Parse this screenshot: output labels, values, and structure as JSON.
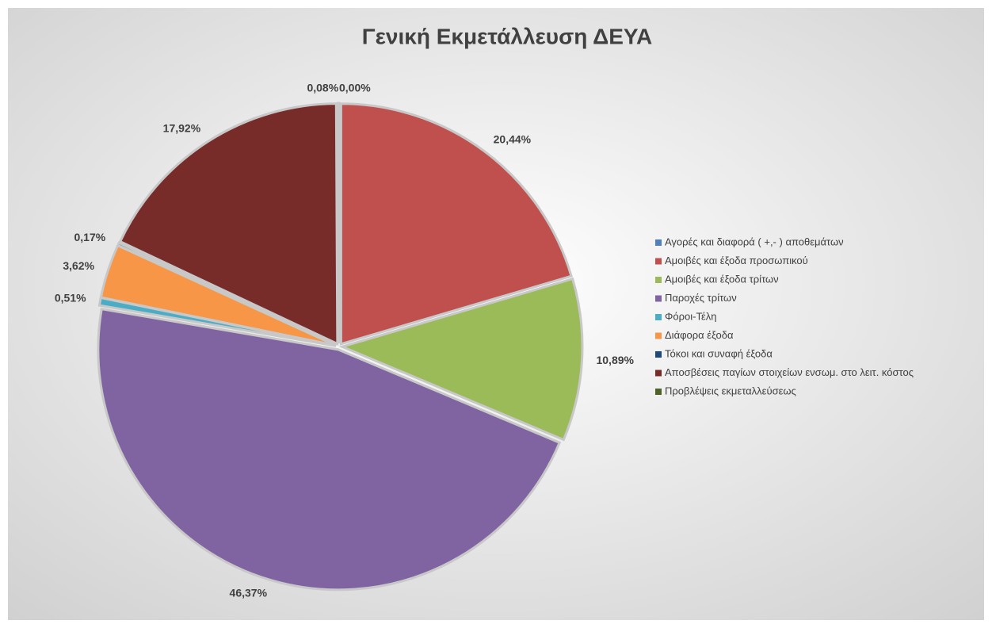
{
  "chart_data": {
    "type": "pie",
    "title": "Γενική Εκμετάλλευση ΔΕΥΑ",
    "categories": [
      "Αγορές και διαφορά ( +,- ) αποθεμάτων",
      "Αμοιβές και έξοδα προσωπικού",
      "Αμοιβές και έξοδα τρίτων",
      "Παροχές τρίτων",
      "Φόροι-Τέλη",
      "Διάφορα έξοδα",
      "Τόκοι και συναφή έξοδα",
      "Αποσβέσεις παγίων στοιχείων ενσωμ. στο λειτ. κόστος",
      "Προβλέψεις εκμεταλλεύσεως"
    ],
    "values": [
      0,
      20.44,
      10.89,
      46.37,
      0.51,
      3.62,
      0.17,
      17.92,
      0.08
    ],
    "value_labels": [
      "0,00%",
      "20,44%",
      "10,89%",
      "46,37%",
      "0,51%",
      "3,62%",
      "0,17%",
      "17,92%",
      "0,08%"
    ],
    "colors": [
      "#4f81bd",
      "#c0504d",
      "#9bbb59",
      "#8064a2",
      "#4bacc6",
      "#f79646",
      "#1f497d",
      "#772c2a",
      "#4f6228"
    ],
    "legend": "right"
  }
}
